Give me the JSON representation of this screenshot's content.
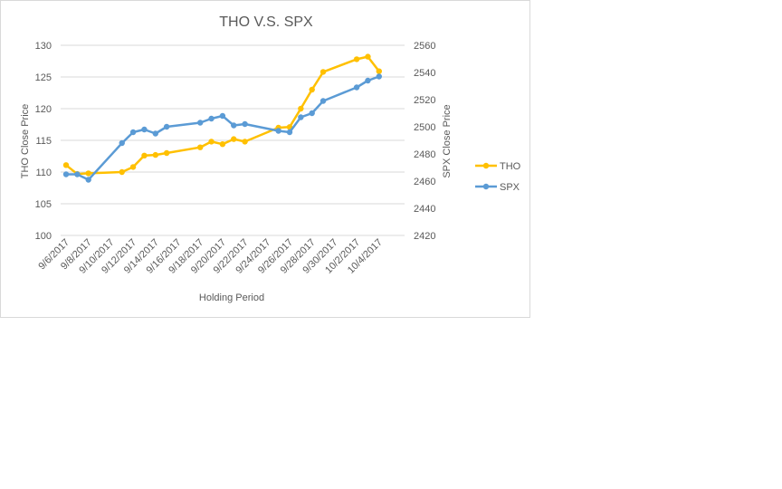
{
  "chart_data": {
    "type": "line",
    "title": "THO V.S. SPX",
    "xlabel": "Holding Period",
    "ylabel_left": "THO Close Price",
    "ylabel_right": "SPX Close Price",
    "x_tick_labels": [
      "9/6/2017",
      "9/8/2017",
      "9/10/2017",
      "9/12/2017",
      "9/14/2017",
      "9/16/2017",
      "9/18/2017",
      "9/20/2017",
      "9/22/2017",
      "9/24/2017",
      "9/26/2017",
      "9/28/2017",
      "9/30/2017",
      "10/2/2017",
      "10/4/2017"
    ],
    "y_left_ticks": [
      100,
      105,
      110,
      115,
      120,
      125,
      130
    ],
    "y_right_ticks": [
      2420,
      2440,
      2460,
      2480,
      2500,
      2520,
      2540,
      2560
    ],
    "ylim_left": [
      100,
      130
    ],
    "ylim_right": [
      2420,
      2560
    ],
    "legend_position": "right",
    "series": [
      {
        "name": "THO",
        "axis": "left",
        "color": "#ffc000",
        "points": [
          {
            "x": "2017-09-06",
            "y": 111.1
          },
          {
            "x": "2017-09-07",
            "y": 109.7
          },
          {
            "x": "2017-09-08",
            "y": 109.8
          },
          {
            "x": "2017-09-11",
            "y": 110.0
          },
          {
            "x": "2017-09-12",
            "y": 110.8
          },
          {
            "x": "2017-09-13",
            "y": 112.6
          },
          {
            "x": "2017-09-14",
            "y": 112.7
          },
          {
            "x": "2017-09-15",
            "y": 113.0
          },
          {
            "x": "2017-09-18",
            "y": 113.9
          },
          {
            "x": "2017-09-19",
            "y": 114.8
          },
          {
            "x": "2017-09-20",
            "y": 114.4
          },
          {
            "x": "2017-09-21",
            "y": 115.2
          },
          {
            "x": "2017-09-22",
            "y": 114.8
          },
          {
            "x": "2017-09-25",
            "y": 117.0
          },
          {
            "x": "2017-09-26",
            "y": 117.1
          },
          {
            "x": "2017-09-27",
            "y": 120.0
          },
          {
            "x": "2017-09-28",
            "y": 123.0
          },
          {
            "x": "2017-09-29",
            "y": 125.8
          },
          {
            "x": "2017-10-02",
            "y": 127.8
          },
          {
            "x": "2017-10-03",
            "y": 128.2
          },
          {
            "x": "2017-10-04",
            "y": 125.9
          }
        ]
      },
      {
        "name": "SPX",
        "axis": "right",
        "color": "#5b9bd5",
        "points": [
          {
            "x": "2017-09-06",
            "y": 2465
          },
          {
            "x": "2017-09-07",
            "y": 2465
          },
          {
            "x": "2017-09-08",
            "y": 2461
          },
          {
            "x": "2017-09-11",
            "y": 2488
          },
          {
            "x": "2017-09-12",
            "y": 2496
          },
          {
            "x": "2017-09-13",
            "y": 2498
          },
          {
            "x": "2017-09-14",
            "y": 2495
          },
          {
            "x": "2017-09-15",
            "y": 2500
          },
          {
            "x": "2017-09-18",
            "y": 2503
          },
          {
            "x": "2017-09-19",
            "y": 2506
          },
          {
            "x": "2017-09-20",
            "y": 2508
          },
          {
            "x": "2017-09-21",
            "y": 2501
          },
          {
            "x": "2017-09-22",
            "y": 2502
          },
          {
            "x": "2017-09-25",
            "y": 2497
          },
          {
            "x": "2017-09-26",
            "y": 2496
          },
          {
            "x": "2017-09-27",
            "y": 2507
          },
          {
            "x": "2017-09-28",
            "y": 2510
          },
          {
            "x": "2017-09-29",
            "y": 2519
          },
          {
            "x": "2017-10-02",
            "y": 2529
          },
          {
            "x": "2017-10-03",
            "y": 2534
          },
          {
            "x": "2017-10-04",
            "y": 2537
          }
        ]
      }
    ]
  }
}
